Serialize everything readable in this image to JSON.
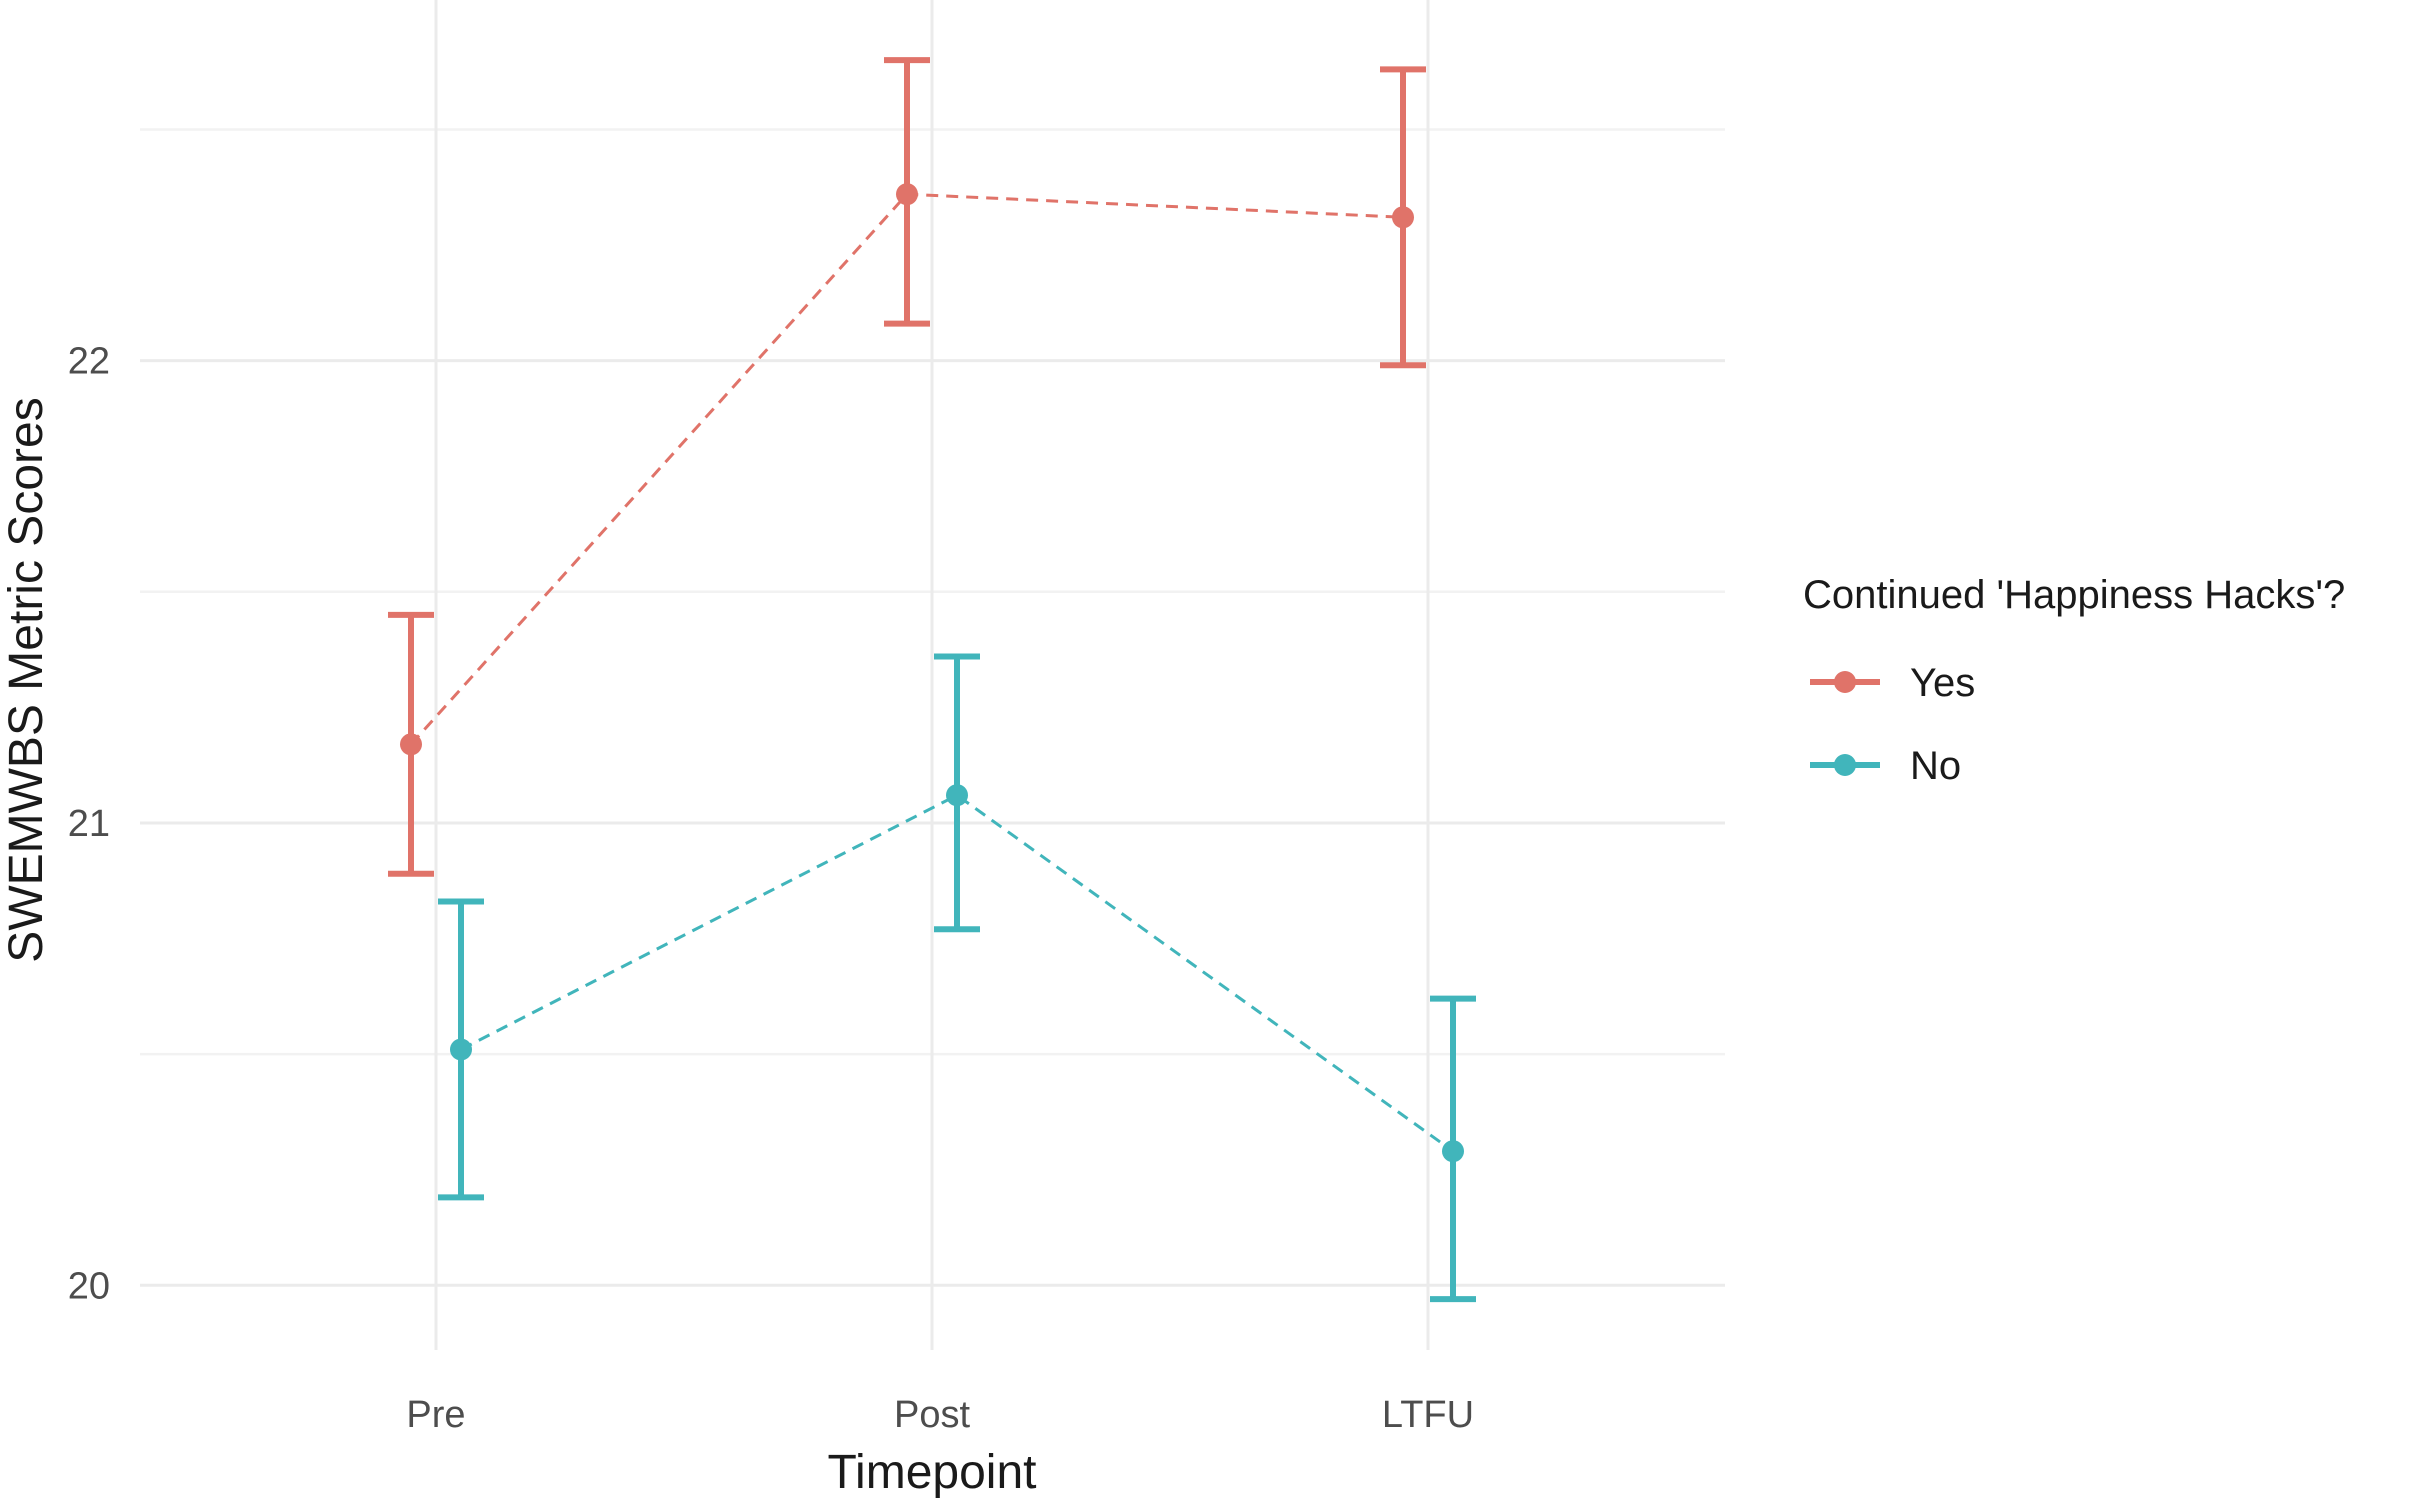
{
  "chart_data": {
    "type": "line",
    "xlabel": "Timepoint",
    "ylabel": "SWEMWBS Metric Scores",
    "categories": [
      "Pre",
      "Post",
      "LTFU"
    ],
    "ylim": [
      19.86,
      22.78
    ],
    "yticks": [
      20,
      21,
      22
    ],
    "grid": true,
    "legend": {
      "title": "Continued 'Happiness Hacks'?",
      "position": "right"
    },
    "series": [
      {
        "name": "Yes",
        "color": "#E07369",
        "values": [
          21.17,
          22.36,
          22.31
        ],
        "lower": [
          20.89,
          22.08,
          21.99
        ],
        "upper": [
          21.45,
          22.65,
          22.63
        ]
      },
      {
        "name": "No",
        "color": "#41B5BB",
        "values": [
          20.51,
          21.06,
          20.29
        ],
        "lower": [
          20.19,
          20.77,
          19.97
        ],
        "upper": [
          20.83,
          21.36,
          20.62
        ]
      }
    ]
  }
}
